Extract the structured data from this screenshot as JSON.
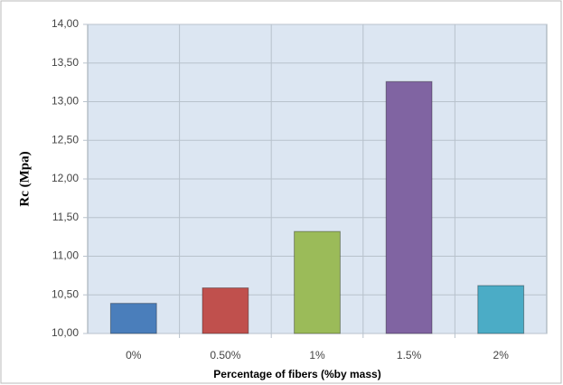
{
  "chart_data": {
    "type": "bar",
    "x_label": "Percentage of fibers (%by mass)",
    "y_label": "Rc (Mpa)",
    "categories": [
      "0%",
      "0.50%",
      "1%",
      "1.5%",
      "2%"
    ],
    "values": [
      10.39,
      10.59,
      11.32,
      13.26,
      10.62
    ],
    "colors": [
      "#4a7ebb",
      "#c0504d",
      "#9bbb59",
      "#8064a2",
      "#4bacc6"
    ],
    "ylim": [
      10,
      14
    ],
    "yticks": [
      {
        "value": 10,
        "label": "10,00"
      },
      {
        "value": 10.5,
        "label": "10,50"
      },
      {
        "value": 11,
        "label": "11,00"
      },
      {
        "value": 11.5,
        "label": "11,50"
      },
      {
        "value": 12,
        "label": "12,00"
      },
      {
        "value": 12.5,
        "label": "12,50"
      },
      {
        "value": 13,
        "label": "13,00"
      },
      {
        "value": 13.5,
        "label": "13,50"
      },
      {
        "value": 14,
        "label": "14,00"
      }
    ],
    "grid": true
  }
}
